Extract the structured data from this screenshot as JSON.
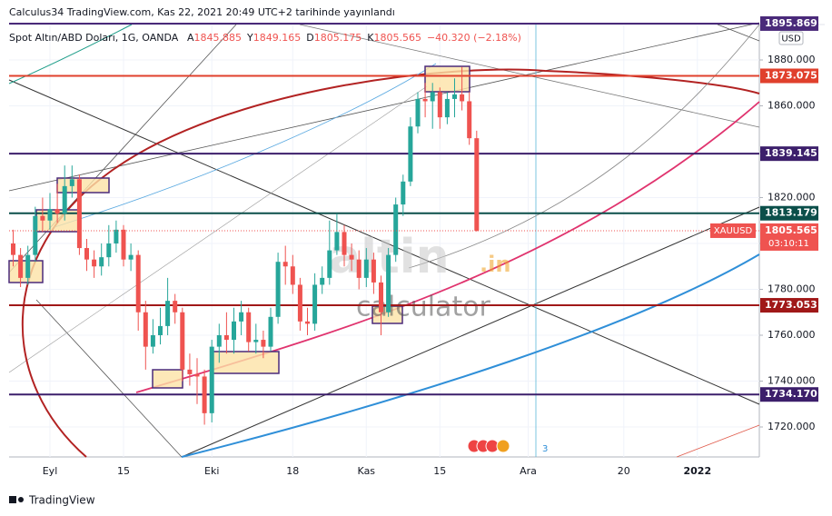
{
  "header": "Calculus34 TradingView.com, Kas 22, 2021 20:49 UTC+2 tarihinde yayınlandı",
  "footer": "TradingView",
  "chart_data": {
    "type": "candlestick",
    "title": "Spot Altın/ABD Doları, 1G, OANDA",
    "legend_prefixes": [
      "A",
      "Y",
      "D",
      "K"
    ],
    "change_text": "−40.320 (−2.18%)",
    "currency": "USD",
    "watermark": [
      "altin",
      ".in",
      "calculator"
    ],
    "marker_text": "3",
    "up_color": "#26a69a",
    "down_color": "#ef5350",
    "categories": [
      null,
      null,
      null,
      null,
      null,
      "Eyl",
      null,
      null,
      null,
      null,
      null,
      null,
      null,
      null,
      null,
      "15",
      null,
      null,
      null,
      null,
      null,
      null,
      null,
      null,
      null,
      null,
      null,
      "Eki",
      null,
      null,
      null,
      null,
      null,
      null,
      null,
      null,
      null,
      null,
      "18",
      null,
      null,
      null,
      null,
      null,
      null,
      null,
      null,
      null,
      "Kas",
      null,
      null,
      null,
      null,
      null,
      null,
      null,
      null,
      null,
      "15",
      null,
      null,
      null,
      null,
      null,
      null,
      null,
      null,
      null,
      null,
      null,
      "Ara",
      null,
      null,
      null,
      null,
      null,
      null,
      null,
      null,
      null,
      null,
      null,
      null,
      "20",
      null,
      null,
      null,
      null,
      null,
      null,
      null,
      null,
      null,
      "2022"
    ],
    "open": [
      1800,
      1795,
      1785,
      1795,
      1812,
      1810,
      1815,
      1813,
      1825,
      1828,
      1798,
      1793,
      1790,
      1794,
      1800,
      1806,
      1793,
      1795,
      1770,
      1755,
      1760,
      1764,
      1775,
      1770,
      1745,
      1743,
      1742,
      1726,
      1755,
      1760,
      1758,
      1766,
      1770,
      1757,
      1758,
      1755,
      1768,
      1792,
      1790,
      1782,
      1766,
      1765,
      1782,
      1785,
      1797,
      1805,
      1795,
      1793,
      1785,
      1793,
      1783,
      1770,
      1795,
      1817,
      1827,
      1851,
      1863,
      1862,
      1866,
      1855,
      1863,
      1865,
      1862,
      1845.885,
      null,
      null,
      null,
      null,
      null,
      null,
      null,
      null,
      null,
      null,
      null,
      null,
      null,
      null,
      null,
      null,
      null,
      null,
      null,
      null,
      null,
      null,
      null,
      null,
      null,
      null,
      null,
      null,
      null,
      null
    ],
    "high": [
      1806,
      1798,
      1799,
      1816,
      1820,
      1822,
      1826,
      1834,
      1834,
      1830,
      1802,
      1797,
      1800,
      1808,
      1810,
      1808,
      1800,
      1797,
      1775,
      1767,
      1772,
      1785,
      1778,
      1772,
      1752,
      1750,
      1745,
      1758,
      1765,
      1770,
      1772,
      1775,
      1772,
      1765,
      1762,
      1772,
      1796,
      1799,
      1795,
      1785,
      1772,
      1787,
      1790,
      1810,
      1813,
      1808,
      1800,
      1797,
      1798,
      1796,
      1786,
      1798,
      1820,
      1830,
      1855,
      1866,
      1870,
      1870,
      1868,
      1866,
      1872,
      1877,
      1866,
      1849.165,
      null,
      null,
      null,
      null,
      null,
      null,
      null,
      null,
      null,
      null,
      null,
      null,
      null,
      null,
      null,
      null,
      null,
      null,
      null,
      null,
      null,
      null,
      null,
      null,
      null,
      null,
      null,
      null,
      null,
      null
    ],
    "low": [
      1790,
      1781,
      1782,
      1792,
      1805,
      1806,
      1809,
      1810,
      1820,
      1795,
      1788,
      1785,
      1786,
      1790,
      1796,
      1790,
      1788,
      1762,
      1745,
      1752,
      1756,
      1760,
      1765,
      1740,
      1738,
      1730,
      1721,
      1722,
      1748,
      1752,
      1752,
      1760,
      1753,
      1752,
      1750,
      1753,
      1765,
      1782,
      1778,
      1762,
      1760,
      1762,
      1778,
      1782,
      1795,
      1790,
      1788,
      1780,
      1781,
      1778,
      1760,
      1768,
      1792,
      1812,
      1825,
      1848,
      1855,
      1850,
      1850,
      1852,
      1855,
      1858,
      1843,
      1805.175,
      null,
      null,
      null,
      null,
      null,
      null,
      null,
      null,
      null,
      null,
      null,
      null,
      null,
      null,
      null,
      null,
      null,
      null,
      null,
      null,
      null,
      null,
      null,
      null,
      null,
      null,
      null,
      null,
      null,
      null
    ],
    "close": [
      1795,
      1785,
      1795,
      1812,
      1810,
      1815,
      1813,
      1825,
      1828,
      1798,
      1793,
      1790,
      1794,
      1800,
      1806,
      1793,
      1795,
      1770,
      1755,
      1760,
      1764,
      1775,
      1770,
      1745,
      1743,
      1742,
      1726,
      1755,
      1760,
      1758,
      1766,
      1770,
      1757,
      1758,
      1755,
      1768,
      1792,
      1790,
      1782,
      1766,
      1765,
      1782,
      1785,
      1797,
      1805,
      1795,
      1793,
      1785,
      1793,
      1783,
      1770,
      1795,
      1817,
      1827,
      1851,
      1863,
      1862,
      1866,
      1855,
      1863,
      1865,
      1862,
      1845.885,
      1805.565,
      null,
      null,
      null,
      null,
      null,
      null,
      null,
      null,
      null,
      null,
      null,
      null,
      null,
      null,
      null,
      null,
      null,
      null,
      null,
      null,
      null,
      null,
      null,
      null,
      null,
      null,
      null,
      null,
      null,
      null
    ],
    "ylim": [
      1706.93,
      1895.45
    ],
    "yticks": [
      {
        "value": 1720,
        "label": "1720.000"
      },
      {
        "value": 1740,
        "label": "1740.000"
      },
      {
        "value": 1760,
        "label": "1760.000"
      },
      {
        "value": 1780,
        "label": "1780.000"
      },
      {
        "value": 1800,
        "label": "1800.000"
      },
      {
        "value": 1820,
        "label": "1820.000"
      },
      {
        "value": 1840,
        "label": "1840.000"
      },
      {
        "value": 1860,
        "label": "1860.000"
      },
      {
        "value": 1880,
        "label": "1880.000"
      }
    ],
    "levels": [
      {
        "value": 1895.869,
        "label": "1895.869",
        "color": "#4a2a7a"
      },
      {
        "value": 1873.075,
        "label": "1873.075",
        "color": "#e0402c"
      },
      {
        "value": 1839.145,
        "label": "1839.145",
        "color": "#3c1f6b"
      },
      {
        "value": 1813.179,
        "label": "1813.179",
        "color": "#0b4f4a"
      },
      {
        "value": 1773.053,
        "label": "1773.053",
        "color": "#a01818"
      },
      {
        "value": 1734.17,
        "label": "1734.170",
        "color": "#3c1f6b"
      }
    ],
    "last_price": {
      "name": "XAUUSD",
      "value": 1805.565,
      "label": "1805.565",
      "countdown": "03:10:11",
      "color": "#ef5350"
    }
  }
}
